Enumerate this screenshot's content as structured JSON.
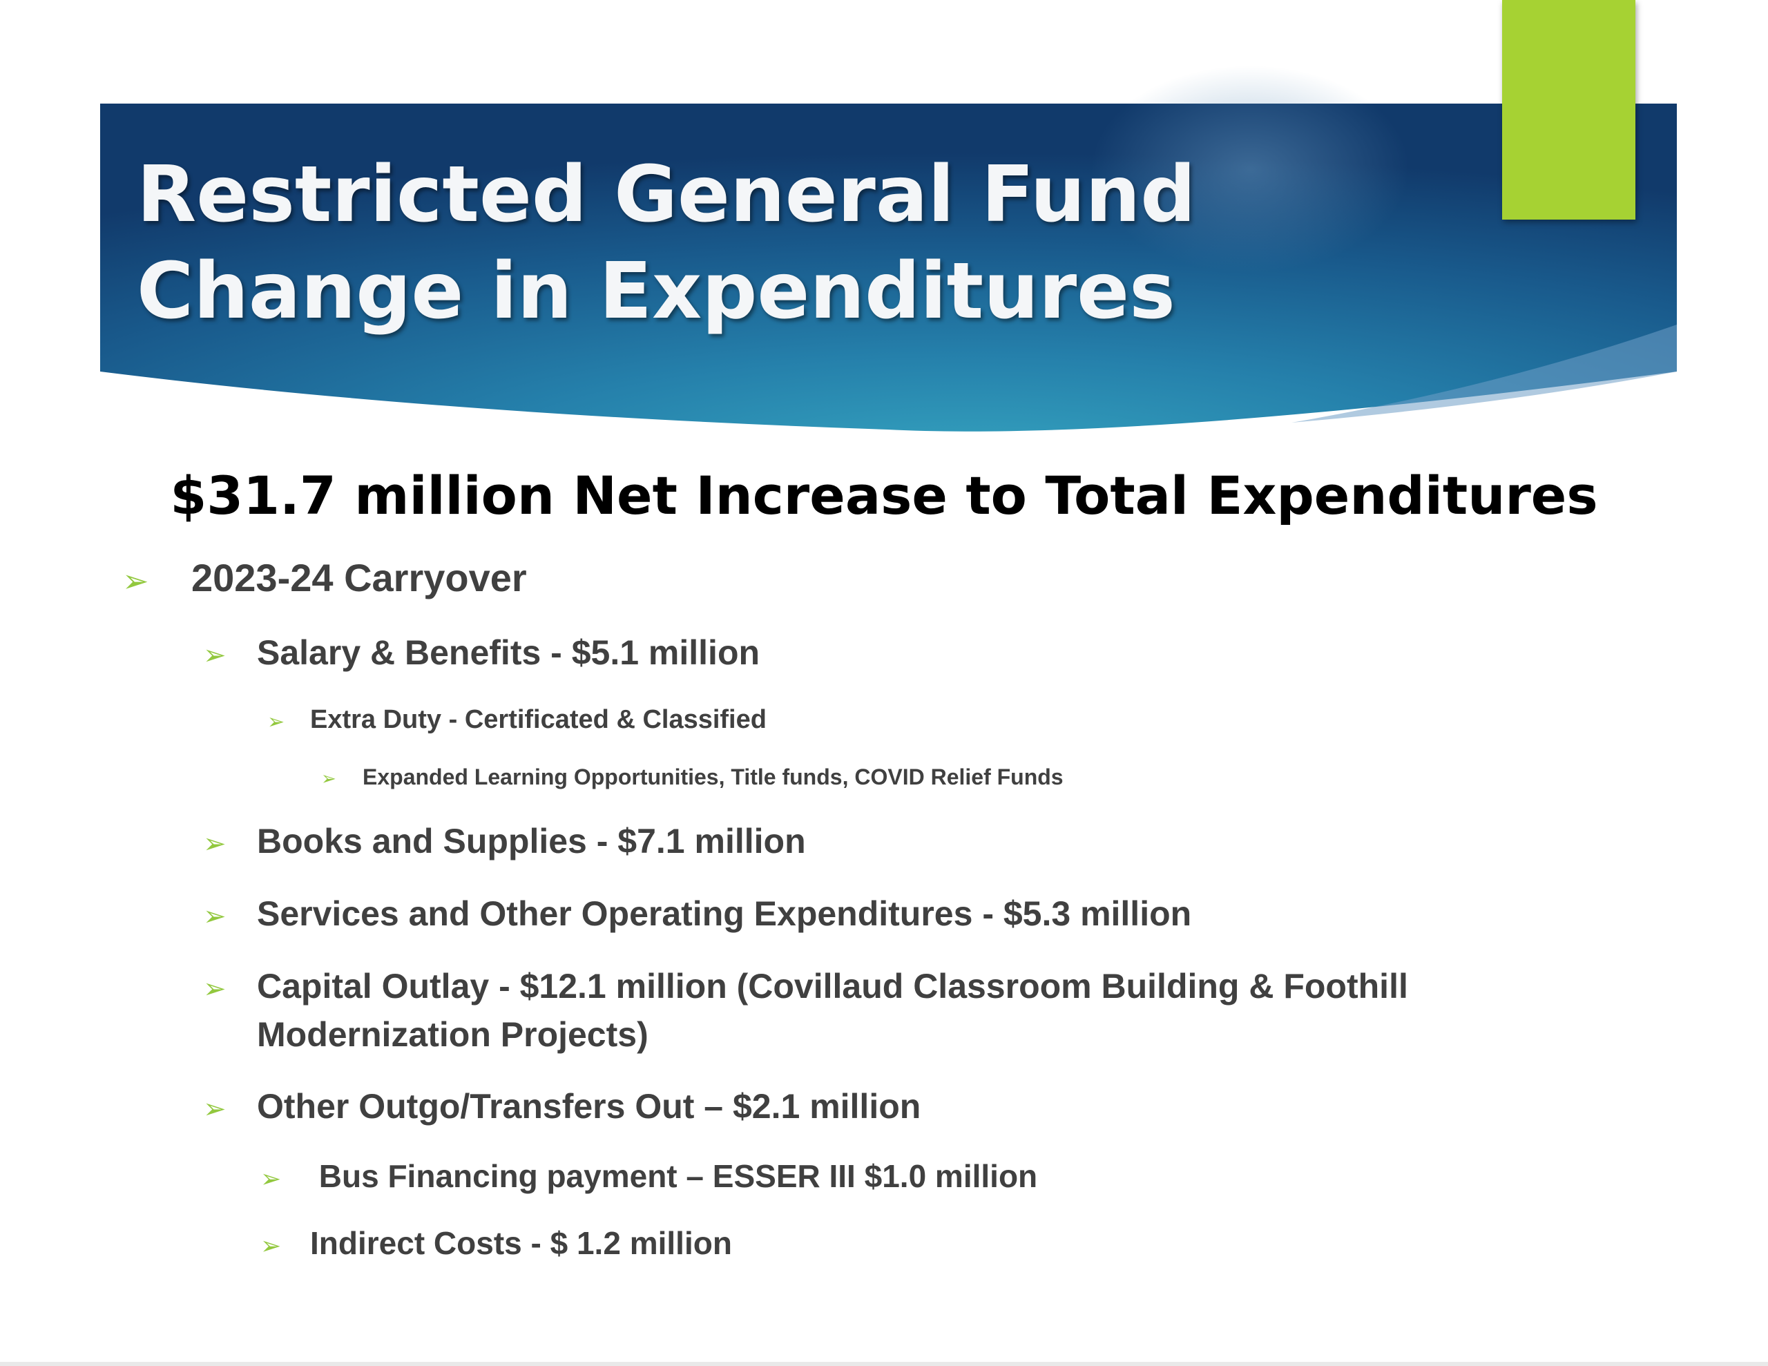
{
  "slide": {
    "title_lines": [
      "Restricted General Fund",
      "Change in Expenditures"
    ],
    "headline": "$31.7 million Net Increase to Total Expenditures",
    "bullets": [
      {
        "level": 1,
        "text": "2023-24 Carryover"
      },
      {
        "level": 2,
        "text": "Salary & Benefits - $5.1 million"
      },
      {
        "level": 3,
        "text": "Extra Duty  - Certificated & Classified"
      },
      {
        "level": 4,
        "text": "Expanded Learning Opportunities, Title funds, COVID Relief Funds"
      },
      {
        "level": 2,
        "text": "Books and Supplies - $7.1 million"
      },
      {
        "level": 2,
        "text": "Services and Other Operating Expenditures - $5.3 million"
      },
      {
        "level": 2,
        "lines": [
          "Capital Outlay - $12.1 million (Covillaud Classroom Building & Foothill",
          "Modernization Projects)"
        ]
      },
      {
        "level": 2,
        "text": "Other Outgo/Transfers Out – $2.1 million"
      },
      {
        "level": 3,
        "text": " Bus Financing payment – ESSER III $1.0 million"
      },
      {
        "level": 3,
        "text": "Indirect Costs - $ 1.2 million"
      }
    ],
    "bullet_glyph": "➢"
  },
  "colors": {
    "banner_dark": "#113a6b",
    "banner_mid": "#1d6496",
    "banner_light": "#2e93b6",
    "accent_green": "#a6d233",
    "arrow_green": "#92c83e",
    "title_text": "#f4f6f8",
    "body_text": "#404040",
    "headline_text": "#000000"
  }
}
